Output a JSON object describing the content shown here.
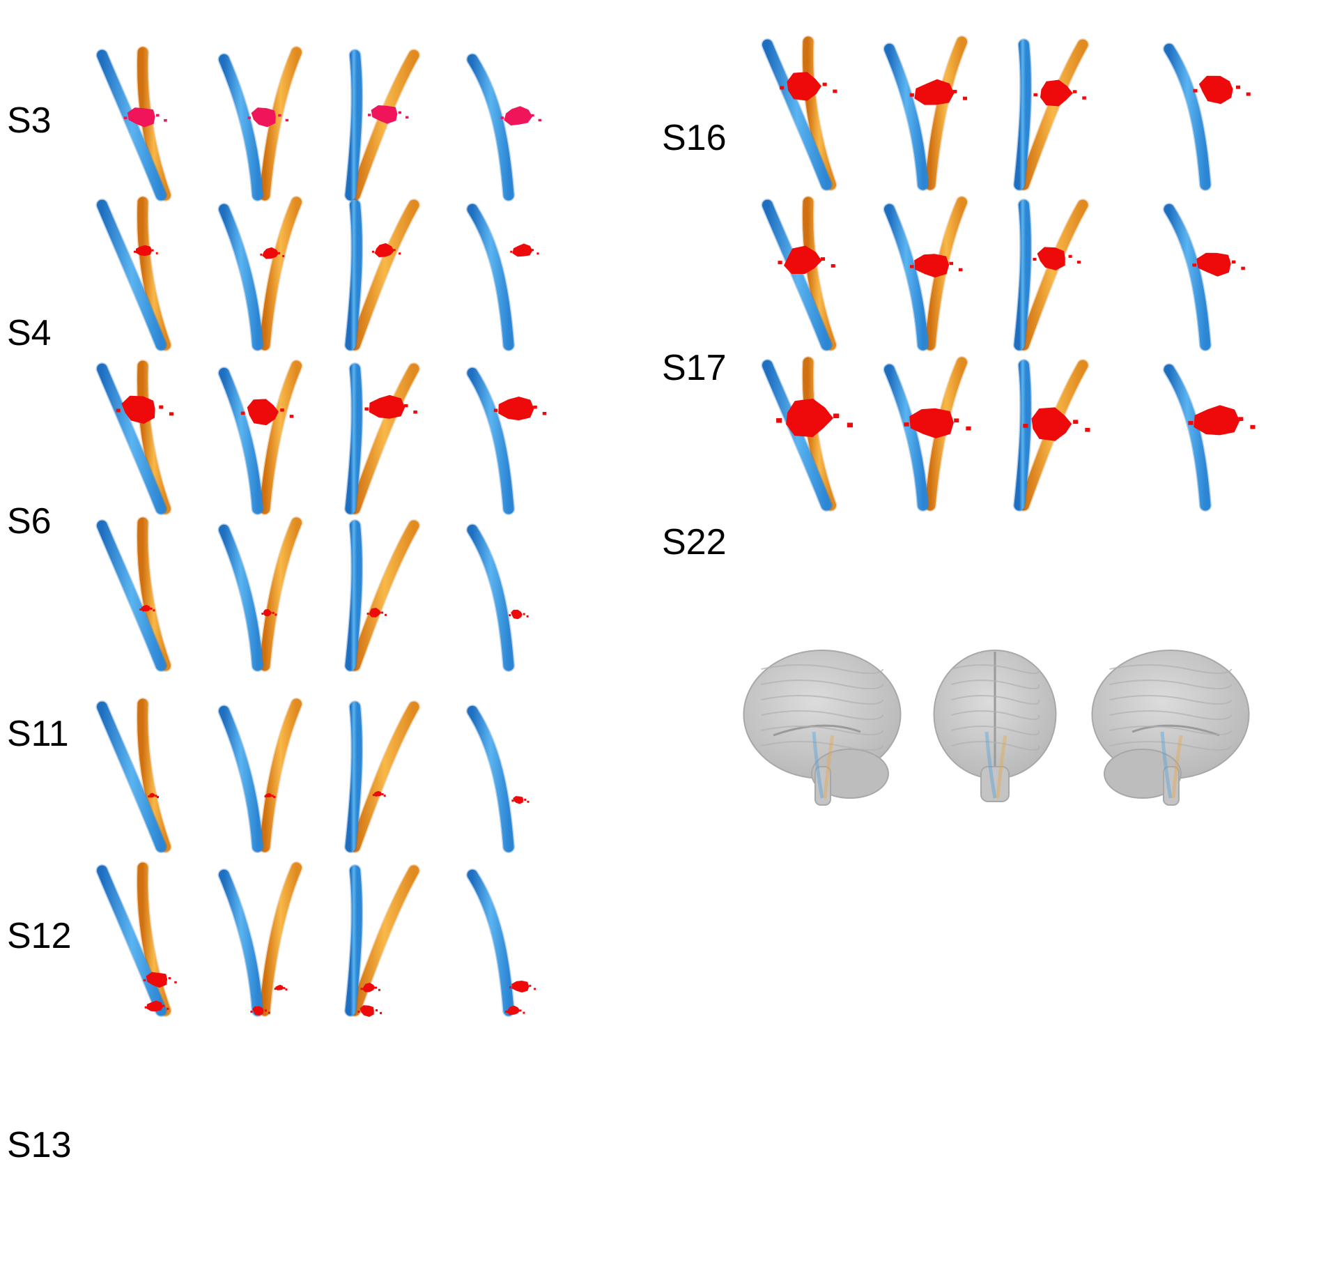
{
  "colors": {
    "tract_blue": "#3a9be0",
    "tract_blue_dark": "#1f6fc0",
    "tract_orange": "#f0a030",
    "tract_orange_dark": "#d87a18",
    "lesion_red": "#ee0a0a",
    "lesion_pink": "#f0145a",
    "brain_fill": "#c9c9c9",
    "brain_edge": "#a8a8a8"
  },
  "left_column": [
    {
      "id": "S3",
      "label": "S3",
      "lesion_color": "lesion_pink",
      "lesions": [
        [
          {
            "dx": 0.49,
            "dy": 0.45,
            "r": 0.09
          }
        ],
        [
          {
            "dx": 0.5,
            "dy": 0.45,
            "r": 0.085
          }
        ],
        [
          {
            "dx": 0.48,
            "dy": 0.43,
            "r": 0.085
          }
        ],
        [
          {
            "dx": 0.6,
            "dy": 0.45,
            "r": 0.085
          }
        ]
      ]
    },
    {
      "id": "S4",
      "label": "S4",
      "lesion_color": "lesion_red",
      "lesions": [
        [
          {
            "dx": 0.51,
            "dy": 0.34,
            "r": 0.05
          }
        ],
        [
          {
            "dx": 0.56,
            "dy": 0.36,
            "r": 0.05
          }
        ],
        [
          {
            "dx": 0.47,
            "dy": 0.34,
            "r": 0.06
          }
        ],
        [
          {
            "dx": 0.65,
            "dy": 0.34,
            "r": 0.06
          }
        ]
      ]
    },
    {
      "id": "S6",
      "label": "S6",
      "lesion_color": "lesion_red",
      "lesions": [
        [
          {
            "dx": 0.47,
            "dy": 0.3,
            "r": 0.12
          }
        ],
        [
          {
            "dx": 0.48,
            "dy": 0.32,
            "r": 0.11
          }
        ],
        [
          {
            "dx": 0.5,
            "dy": 0.29,
            "r": 0.11
          }
        ],
        [
          {
            "dx": 0.58,
            "dy": 0.3,
            "r": 0.11
          }
        ]
      ]
    },
    {
      "id": "S11",
      "label": "S11",
      "lesion_color": "lesion_red",
      "lesions": [
        [
          {
            "dx": 0.53,
            "dy": 0.6,
            "r": 0.03
          }
        ],
        [
          {
            "dx": 0.53,
            "dy": 0.63,
            "r": 0.03
          }
        ],
        [
          {
            "dx": 0.37,
            "dy": 0.63,
            "r": 0.04
          }
        ],
        [
          {
            "dx": 0.59,
            "dy": 0.64,
            "r": 0.04
          }
        ]
      ]
    },
    {
      "id": "S12",
      "label": "S12",
      "lesion_color": "lesion_red",
      "lesions": [
        [
          {
            "dx": 0.6,
            "dy": 0.64,
            "r": 0.02
          }
        ],
        [
          {
            "dx": 0.54,
            "dy": 0.64,
            "r": 0.02
          }
        ],
        [
          {
            "dx": 0.4,
            "dy": 0.63,
            "r": 0.025
          }
        ],
        [
          {
            "dx": 0.61,
            "dy": 0.67,
            "r": 0.035
          }
        ]
      ]
    },
    {
      "id": "S13",
      "label": "S13",
      "lesion_color": "lesion_red",
      "lesions": [
        [
          {
            "dx": 0.66,
            "dy": 0.78,
            "r": 0.07
          },
          {
            "dx": 0.63,
            "dy": 0.97,
            "r": 0.05
          }
        ],
        [
          {
            "dx": 0.66,
            "dy": 0.84,
            "r": 0.025
          },
          {
            "dx": 0.43,
            "dy": 1.0,
            "r": 0.04
          }
        ],
        [
          {
            "dx": 0.3,
            "dy": 0.84,
            "r": 0.04
          },
          {
            "dx": 0.29,
            "dy": 1.0,
            "r": 0.05
          }
        ],
        [
          {
            "dx": 0.63,
            "dy": 0.83,
            "r": 0.055
          },
          {
            "dx": 0.55,
            "dy": 1.0,
            "r": 0.04
          }
        ]
      ]
    }
  ],
  "right_column": [
    {
      "id": "S16",
      "label": "S16",
      "lesion_color": "lesion_red",
      "lesions": [
        [
          {
            "dx": 0.45,
            "dy": 0.31,
            "r": 0.12
          }
        ],
        [
          {
            "dx": 0.54,
            "dy": 0.36,
            "r": 0.12
          }
        ],
        [
          {
            "dx": 0.5,
            "dy": 0.36,
            "r": 0.11
          }
        ],
        [
          {
            "dx": 0.63,
            "dy": 0.33,
            "r": 0.12
          }
        ]
      ]
    },
    {
      "id": "S17",
      "label": "S17",
      "lesion_color": "lesion_red",
      "lesions": [
        [
          {
            "dx": 0.43,
            "dy": 0.41,
            "r": 0.12
          }
        ],
        [
          {
            "dx": 0.52,
            "dy": 0.44,
            "r": 0.11
          }
        ],
        [
          {
            "dx": 0.47,
            "dy": 0.39,
            "r": 0.1
          }
        ],
        [
          {
            "dx": 0.6,
            "dy": 0.43,
            "r": 0.11
          }
        ]
      ]
    },
    {
      "id": "S22",
      "label": "S22",
      "lesion_color": "lesion_red",
      "lesions": [
        [
          {
            "dx": 0.5,
            "dy": 0.39,
            "r": 0.16
          }
        ],
        [
          {
            "dx": 0.52,
            "dy": 0.42,
            "r": 0.14
          }
        ],
        [
          {
            "dx": 0.45,
            "dy": 0.43,
            "r": 0.14
          }
        ],
        [
          {
            "dx": 0.62,
            "dy": 0.41,
            "r": 0.14
          }
        ]
      ]
    }
  ],
  "brain_views": [
    {
      "id": "left-lateral",
      "view": "left-lateral"
    },
    {
      "id": "anterior",
      "view": "anterior"
    },
    {
      "id": "right-lateral",
      "view": "right-lateral"
    }
  ]
}
